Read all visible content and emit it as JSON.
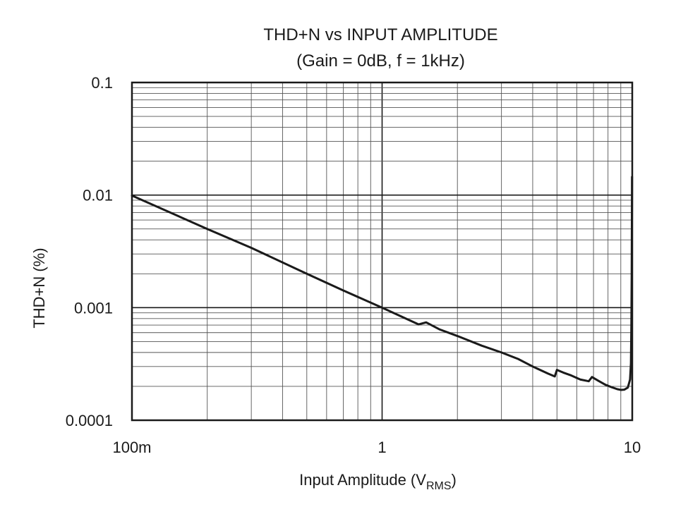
{
  "chart_data": {
    "type": "line",
    "title": "THD+N vs INPUT AMPLITUDE",
    "subtitle": "(Gain = 0dB, f = 1kHz)",
    "xlabel": "Input Amplitude (V",
    "xlabel_sub": "RMS",
    "xlabel_end": ")",
    "ylabel": "THD+N (%)",
    "x_scale": "log",
    "y_scale": "log",
    "xlim": [
      0.1,
      10
    ],
    "ylim": [
      0.0001,
      0.1
    ],
    "x_ticks": [
      {
        "value": 0.1,
        "label": "100m"
      },
      {
        "value": 1,
        "label": "1"
      },
      {
        "value": 10,
        "label": "10"
      }
    ],
    "y_ticks": [
      {
        "value": 0.1,
        "label": "0.1"
      },
      {
        "value": 0.01,
        "label": "0.01"
      },
      {
        "value": 0.001,
        "label": "0.001"
      },
      {
        "value": 0.0001,
        "label": "0.0001"
      }
    ],
    "grid": true,
    "series": [
      {
        "color": "#1a1a1a",
        "x": [
          0.1,
          0.2,
          0.3,
          0.5,
          0.7,
          1.0,
          1.2,
          1.4,
          1.5,
          1.7,
          2.0,
          2.5,
          3.0,
          3.5,
          4.0,
          4.6,
          4.9,
          5.0,
          5.3,
          5.7,
          6.2,
          6.7,
          6.9,
          7.3,
          7.8,
          8.3,
          8.7,
          9.0,
          9.3,
          9.6,
          9.8,
          9.88,
          9.92,
          9.95,
          9.97,
          9.98
        ],
        "y": [
          0.0099,
          0.005,
          0.0034,
          0.002,
          0.00142,
          0.001,
          0.00083,
          0.00071,
          0.00074,
          0.00064,
          0.00056,
          0.00046,
          0.0004,
          0.00035,
          0.0003,
          0.00026,
          0.000245,
          0.00028,
          0.000265,
          0.00025,
          0.00023,
          0.000222,
          0.000242,
          0.000225,
          0.000207,
          0.000196,
          0.000189,
          0.000186,
          0.000187,
          0.000195,
          0.00023,
          0.00032,
          0.0007,
          0.002,
          0.007,
          0.0145
        ]
      }
    ]
  }
}
